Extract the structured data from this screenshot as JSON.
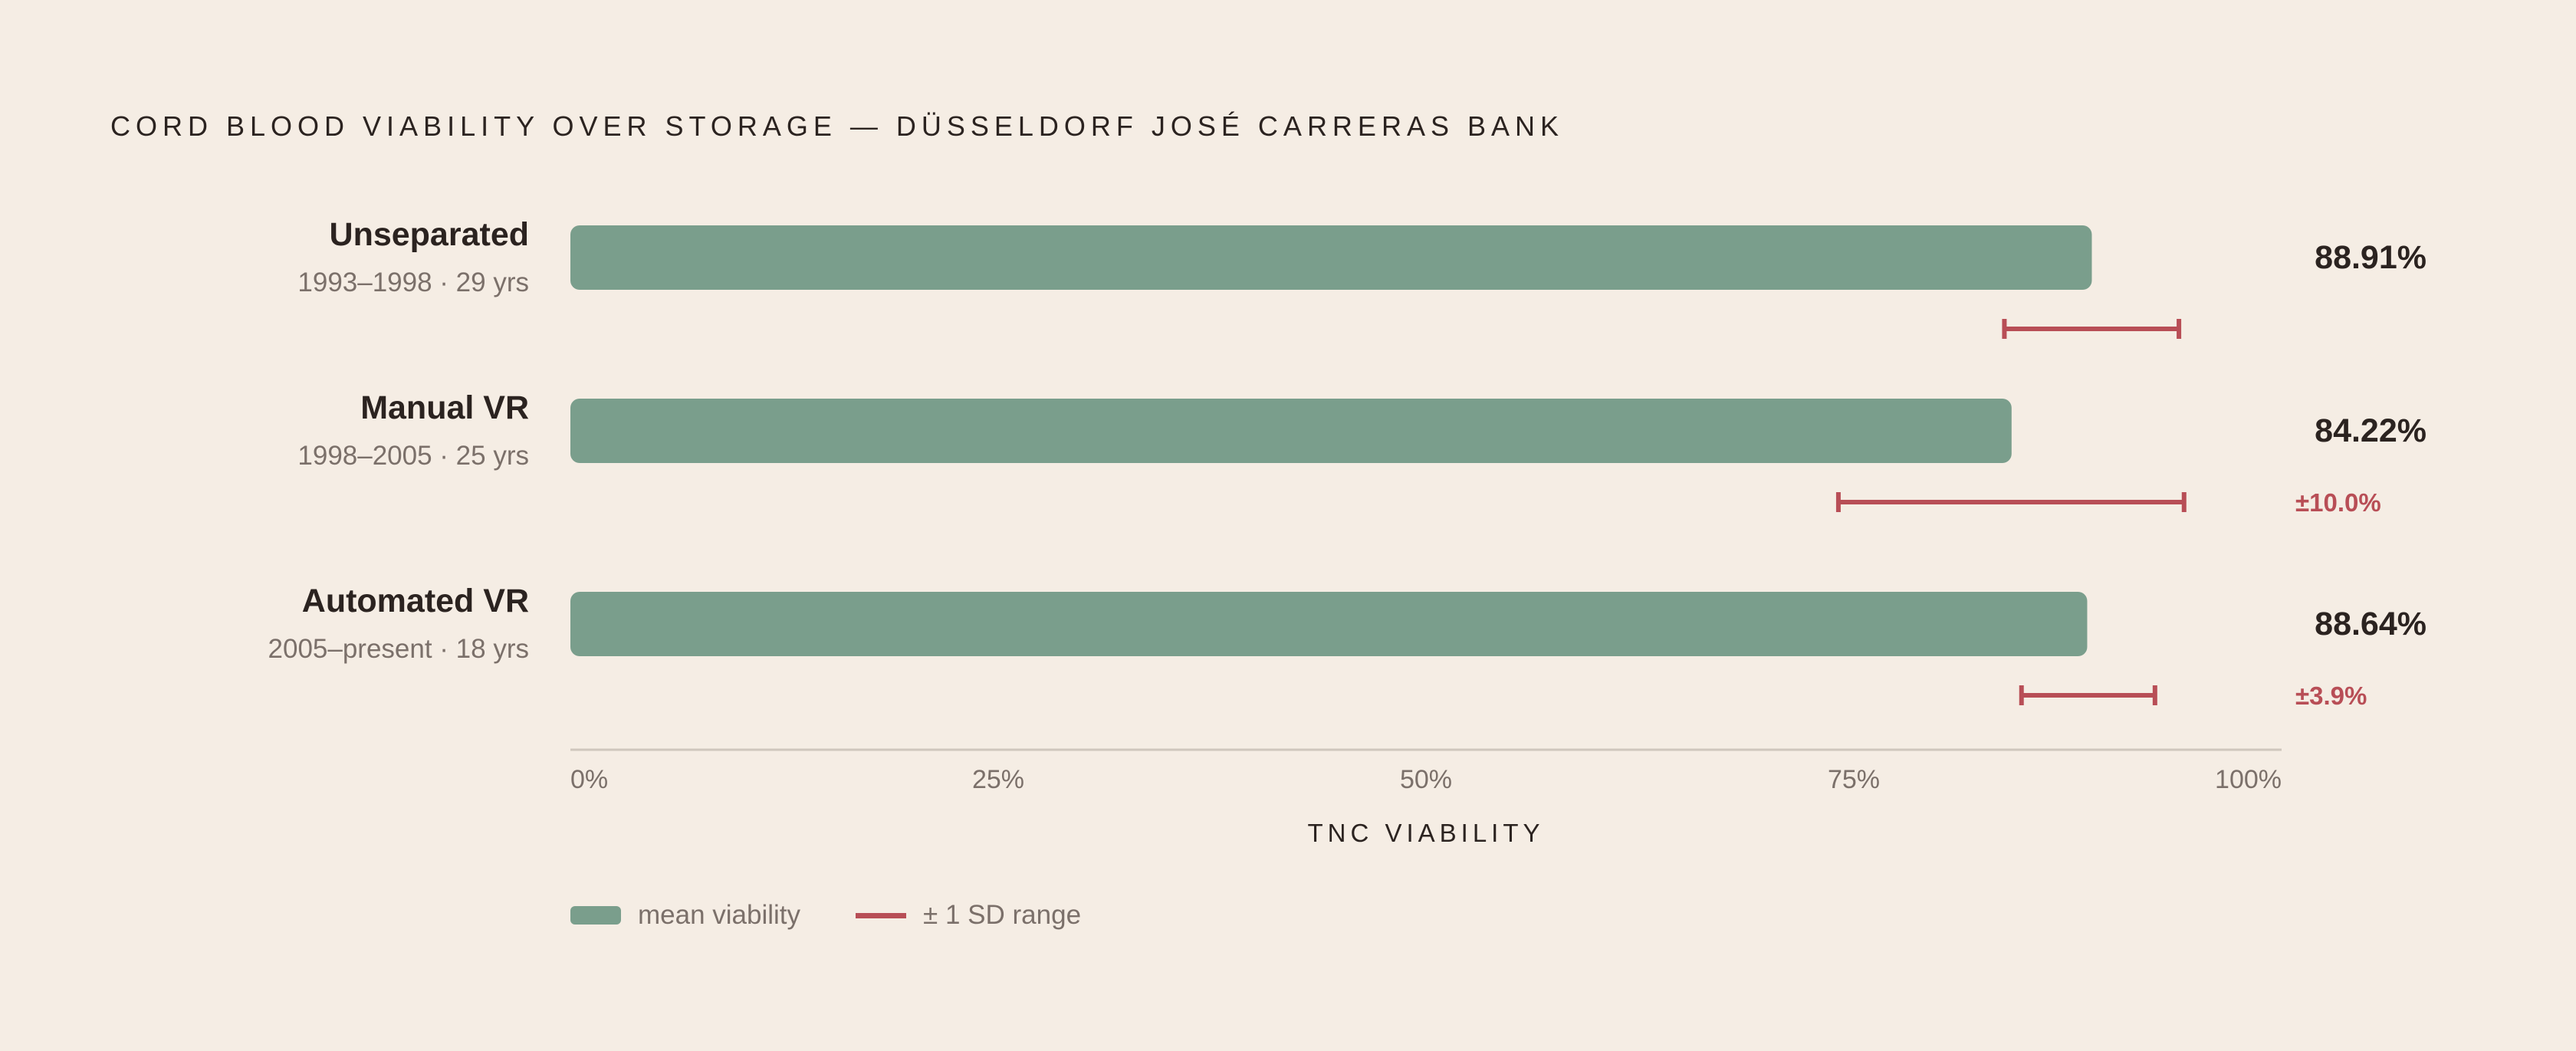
{
  "colors": {
    "background": "#f5ede4",
    "bar": "#7a9e8c",
    "error": "#b84e56",
    "text": "#2b2320",
    "muted": "#7b706a",
    "axis": "#cfc6bd"
  },
  "chart_data": {
    "type": "bar",
    "orientation": "horizontal",
    "title": "CORD BLOOD VIABILITY OVER STORAGE — DÜSSELDORF JOSÉ CARRERAS BANK",
    "xlabel": "TNC VIABILITY",
    "ylabel": "",
    "xlim": [
      0,
      100
    ],
    "ticks": [
      "0%",
      "25%",
      "50%",
      "75%",
      "100%"
    ],
    "tick_values": [
      0,
      25,
      50,
      75,
      100
    ],
    "grid": false,
    "legend_position": "bottom-left",
    "categories": [
      {
        "name": "Unseparated",
        "subtitle": "1993–1998 · 29 yrs",
        "value": 88.91,
        "value_label": "88.91%",
        "sd_range": [
          83.8,
          94.0
        ],
        "sd_label": ""
      },
      {
        "name": "Manual VR",
        "subtitle": "1998–2005 · 25 yrs",
        "value": 84.22,
        "value_label": "84.22%",
        "sd_range": [
          74.1,
          94.3
        ],
        "sd_label": "±10.0%"
      },
      {
        "name": "Automated VR",
        "subtitle": "2005–present · 18 yrs",
        "value": 88.64,
        "value_label": "88.64%",
        "sd_range": [
          84.8,
          92.6
        ],
        "sd_label": "±3.9%"
      }
    ],
    "legend": [
      {
        "label": "mean viability",
        "kind": "bar"
      },
      {
        "label": "± 1 SD range",
        "kind": "line"
      }
    ]
  }
}
